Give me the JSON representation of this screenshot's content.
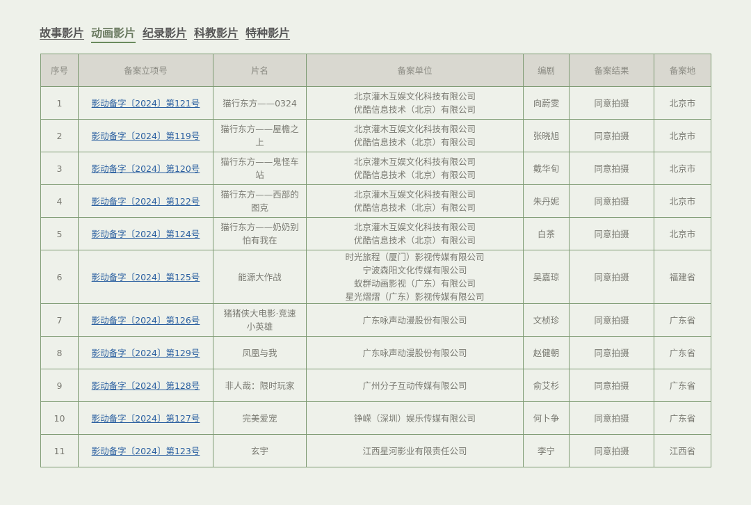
{
  "tabs": [
    "故事影片",
    "动画影片",
    "纪录影片",
    "科教影片",
    "特种影片"
  ],
  "active_tab": 1,
  "headers": [
    "序号",
    "备案立项号",
    "片名",
    "备案单位",
    "编剧",
    "备案结果",
    "备案地"
  ],
  "rows": [
    {
      "no": "1",
      "id": "影动备字〔2024〕第121号",
      "title": "猫行东方——0324",
      "units": [
        "北京灌木互娱文化科技有限公司",
        "优酷信息技术（北京）有限公司"
      ],
      "writer": "向蔚雯",
      "result": "同意拍摄",
      "place": "北京市"
    },
    {
      "no": "2",
      "id": "影动备字〔2024〕第119号",
      "title": "猫行东方——屋檐之上",
      "units": [
        "北京灌木互娱文化科技有限公司",
        "优酷信息技术（北京）有限公司"
      ],
      "writer": "张晓旭",
      "result": "同意拍摄",
      "place": "北京市"
    },
    {
      "no": "3",
      "id": "影动备字〔2024〕第120号",
      "title": "猫行东方——鬼怪车站",
      "units": [
        "北京灌木互娱文化科技有限公司",
        "优酷信息技术（北京）有限公司"
      ],
      "writer": "戴华旬",
      "result": "同意拍摄",
      "place": "北京市"
    },
    {
      "no": "4",
      "id": "影动备字〔2024〕第122号",
      "title": "猫行东方——西部的图克",
      "units": [
        "北京灌木互娱文化科技有限公司",
        "优酷信息技术（北京）有限公司"
      ],
      "writer": "朱丹妮",
      "result": "同意拍摄",
      "place": "北京市"
    },
    {
      "no": "5",
      "id": "影动备字〔2024〕第124号",
      "title": "猫行东方——奶奶别怕有我在",
      "units": [
        "北京灌木互娱文化科技有限公司",
        "优酷信息技术（北京）有限公司"
      ],
      "writer": "白茶",
      "result": "同意拍摄",
      "place": "北京市"
    },
    {
      "no": "6",
      "id": "影动备字〔2024〕第125号",
      "title": "能源大作战",
      "units": [
        "时光旅程（厦门）影视传媒有限公司",
        "宁波森阳文化传媒有限公司",
        "蚁群动画影视（广东）有限公司",
        "星光熠熠（广东）影视传媒有限公司"
      ],
      "writer": "吴嘉琼",
      "result": "同意拍摄",
      "place": "福建省"
    },
    {
      "no": "7",
      "id": "影动备字〔2024〕第126号",
      "title": "猪猪侠大电影·竞速小英雄",
      "units": [
        "广东咏声动漫股份有限公司"
      ],
      "writer": "文桢珍",
      "result": "同意拍摄",
      "place": "广东省"
    },
    {
      "no": "8",
      "id": "影动备字〔2024〕第129号",
      "title": "凤凰与我",
      "units": [
        "广东咏声动漫股份有限公司"
      ],
      "writer": "赵健朝",
      "result": "同意拍摄",
      "place": "广东省"
    },
    {
      "no": "9",
      "id": "影动备字〔2024〕第128号",
      "title": "非人哉：限时玩家",
      "units": [
        "广州分子互动传媒有限公司"
      ],
      "writer": "俞艾杉",
      "result": "同意拍摄",
      "place": "广东省"
    },
    {
      "no": "10",
      "id": "影动备字〔2024〕第127号",
      "title": "完美爱宠",
      "units": [
        "铮嵘（深圳）娱乐传媒有限公司"
      ],
      "writer": "何卜争",
      "result": "同意拍摄",
      "place": "广东省"
    },
    {
      "no": "11",
      "id": "影动备字〔2024〕第123号",
      "title": "玄宇",
      "units": [
        "江西星河影业有限责任公司"
      ],
      "writer": "李宁",
      "result": "同意拍摄",
      "place": "江西省"
    }
  ]
}
